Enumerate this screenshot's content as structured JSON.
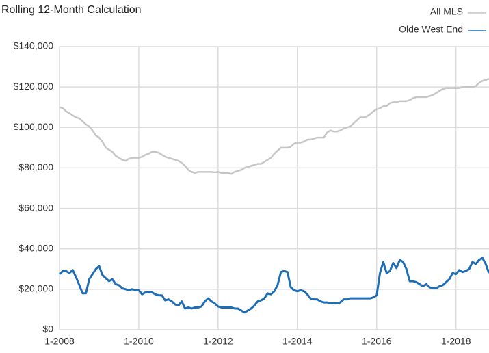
{
  "chart_data": {
    "type": "line",
    "title": "Rolling 12-Month Calculation",
    "categories": [
      "1-2008",
      null,
      null,
      null,
      null,
      null,
      null,
      null,
      null,
      null,
      null,
      null,
      null,
      null,
      null,
      null,
      null,
      null,
      null,
      null,
      null,
      null,
      null,
      null,
      "1-2010",
      null,
      null,
      null,
      null,
      null,
      null,
      null,
      null,
      null,
      null,
      null,
      null,
      null,
      null,
      null,
      null,
      null,
      null,
      null,
      null,
      null,
      null,
      null,
      "1-2012",
      null,
      null,
      null,
      null,
      null,
      null,
      null,
      null,
      null,
      null,
      null,
      null,
      null,
      null,
      null,
      null,
      null,
      null,
      null,
      null,
      null,
      null,
      null,
      "1-2014",
      null,
      null,
      null,
      null,
      null,
      null,
      null,
      null,
      null,
      null,
      null,
      null,
      null,
      null,
      null,
      null,
      null,
      null,
      null,
      null,
      null,
      null,
      null,
      "1-2016",
      null,
      null,
      null,
      null,
      null,
      null,
      null,
      null,
      null,
      null,
      null,
      null,
      null,
      null,
      null,
      null,
      null,
      null,
      null,
      null,
      null,
      null,
      null,
      "1-2018",
      null,
      null,
      null,
      null,
      null,
      null,
      null,
      null,
      null,
      null
    ],
    "series": [
      {
        "name": "All MLS",
        "color": "#c6c6c6",
        "values": [
          110000,
          109500,
          108000,
          107000,
          106000,
          105000,
          104500,
          103000,
          101500,
          100500,
          98500,
          96000,
          95000,
          93000,
          90000,
          89000,
          88000,
          86000,
          85000,
          84000,
          83500,
          84500,
          85000,
          85000,
          85000,
          85500,
          86500,
          87000,
          88000,
          88000,
          87500,
          86500,
          85500,
          85000,
          84500,
          84000,
          83500,
          82500,
          81000,
          79000,
          78000,
          77500,
          78000,
          78000,
          78000,
          78000,
          78000,
          77800,
          78000,
          77500,
          77500,
          77500,
          77000,
          78000,
          78500,
          79000,
          80000,
          80500,
          81000,
          81500,
          82000,
          82000,
          83000,
          84000,
          85000,
          87000,
          88500,
          90000,
          90000,
          90000,
          90500,
          92000,
          92500,
          92500,
          93000,
          94000,
          94000,
          94500,
          95000,
          95000,
          95000,
          97500,
          98500,
          98000,
          98000,
          98500,
          99500,
          100000,
          100500,
          102000,
          103500,
          105000,
          105000,
          105500,
          106500,
          108000,
          109000,
          109500,
          110500,
          110500,
          112000,
          112500,
          112500,
          113000,
          113000,
          113000,
          113500,
          114500,
          115000,
          115000,
          115000,
          115000,
          115500,
          116000,
          117000,
          118000,
          119000,
          119500,
          119500,
          119500,
          119500,
          119500,
          120000,
          120000,
          120000,
          120000,
          120500,
          122000,
          123000,
          123500,
          124000
        ]
      },
      {
        "name": "Olde West End",
        "color": "#1f6db5",
        "values": [
          27500,
          29000,
          29000,
          28000,
          29500,
          26000,
          22000,
          18000,
          18000,
          25000,
          27500,
          30000,
          31500,
          27000,
          25500,
          24000,
          25000,
          22500,
          22000,
          20500,
          20000,
          19500,
          20000,
          19500,
          19500,
          17500,
          18500,
          18500,
          18500,
          17500,
          17000,
          17000,
          14500,
          15000,
          14000,
          12500,
          12000,
          14000,
          10500,
          11000,
          10500,
          11000,
          11000,
          11500,
          14000,
          15500,
          14000,
          13000,
          11500,
          11000,
          11000,
          11000,
          11000,
          10500,
          10500,
          9500,
          8500,
          9500,
          10500,
          12000,
          14000,
          14500,
          15500,
          18000,
          17500,
          19000,
          22000,
          28500,
          29000,
          28500,
          21000,
          19500,
          19000,
          19500,
          19000,
          17500,
          15500,
          15000,
          15000,
          14000,
          13500,
          13500,
          13000,
          13000,
          13000,
          13500,
          15000,
          15000,
          15500,
          15500,
          15500,
          15500,
          15500,
          15500,
          15500,
          16000,
          17000,
          28000,
          33500,
          28000,
          29000,
          33000,
          30500,
          34500,
          33500,
          30000,
          24000,
          24000,
          23500,
          22500,
          21500,
          22500,
          21000,
          20500,
          20500,
          21500,
          22000,
          23500,
          25000,
          28000,
          27500,
          29500,
          28500,
          29000,
          30000,
          33500,
          32500,
          34500,
          35500,
          32500,
          28000
        ]
      }
    ],
    "ylim": [
      0,
      140000
    ],
    "yticks": [
      {
        "value": 0,
        "label": "$0"
      },
      {
        "value": 20000,
        "label": "$20,000"
      },
      {
        "value": 40000,
        "label": "$40,000"
      },
      {
        "value": 60000,
        "label": "$60,000"
      },
      {
        "value": 80000,
        "label": "$80,000"
      },
      {
        "value": 100000,
        "label": "$100,000"
      },
      {
        "value": 120000,
        "label": "$120,000"
      },
      {
        "value": 140000,
        "label": "$140,000"
      }
    ],
    "grid": true,
    "legend": "top-right"
  }
}
